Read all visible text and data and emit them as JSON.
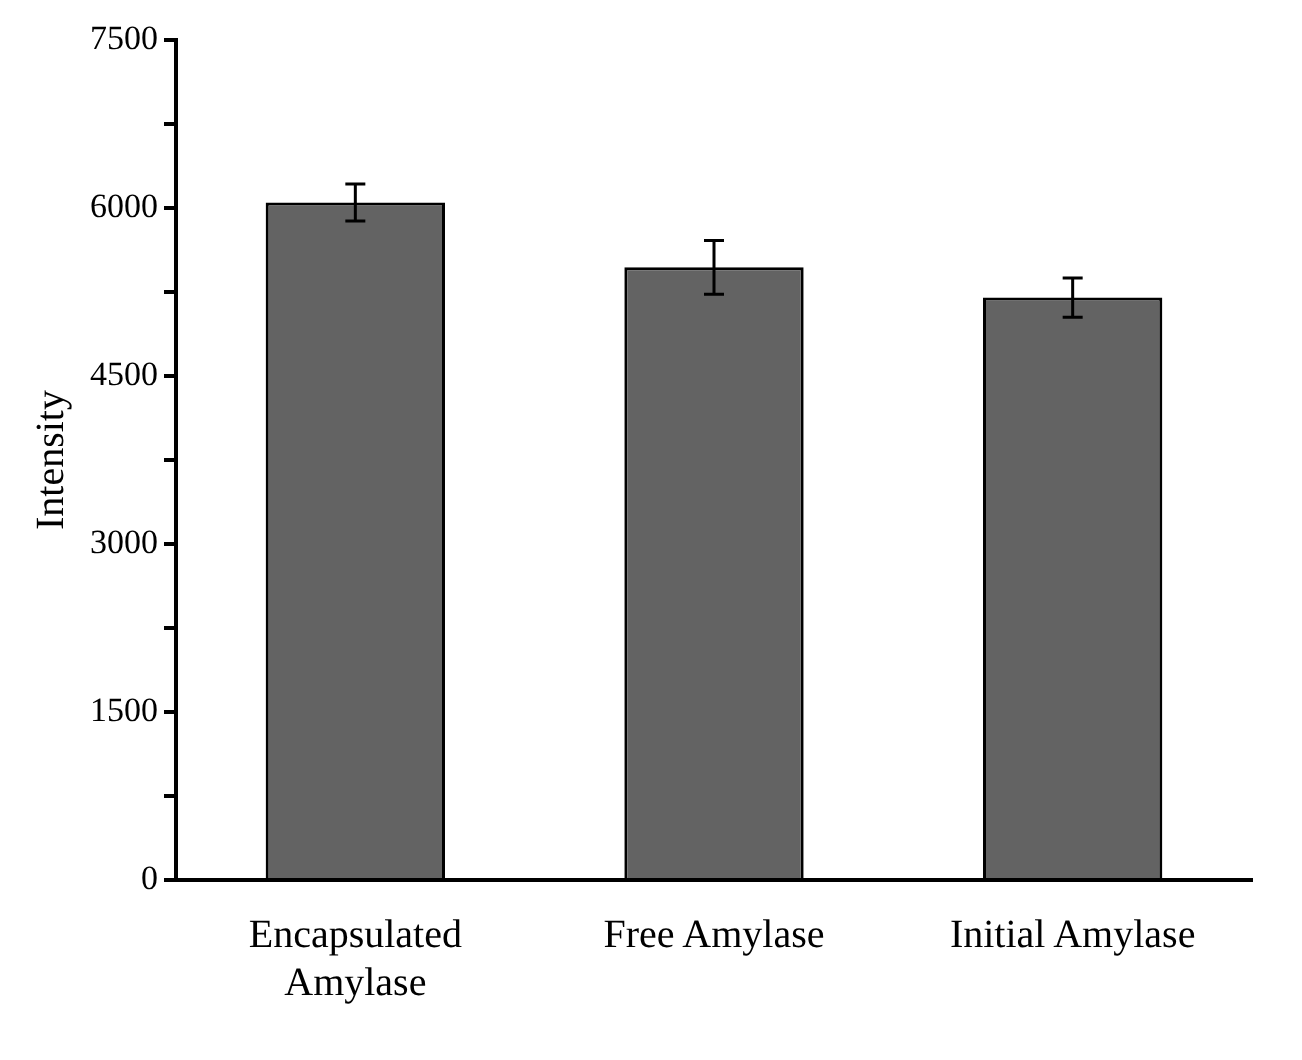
{
  "chart_data": {
    "type": "bar",
    "ylabel": "Intensity",
    "categories": [
      "Encapsulated Amylase",
      "Free Amylase",
      "Initial Amylase"
    ],
    "values": [
      6050,
      5470,
      5200
    ],
    "errors": [
      165,
      240,
      175
    ],
    "color": "#636363",
    "ylim": [
      0,
      7500
    ],
    "yticks": [
      0,
      {
        "value": 750,
        "label": null
      },
      1500,
      {
        "value": 2250,
        "label": null
      },
      3000,
      {
        "value": 3750,
        "label": null
      },
      4500,
      {
        "value": 5250,
        "label": null
      },
      6000,
      {
        "value": 6750,
        "label": null
      },
      7500
    ],
    "grid": false,
    "legend": false
  }
}
